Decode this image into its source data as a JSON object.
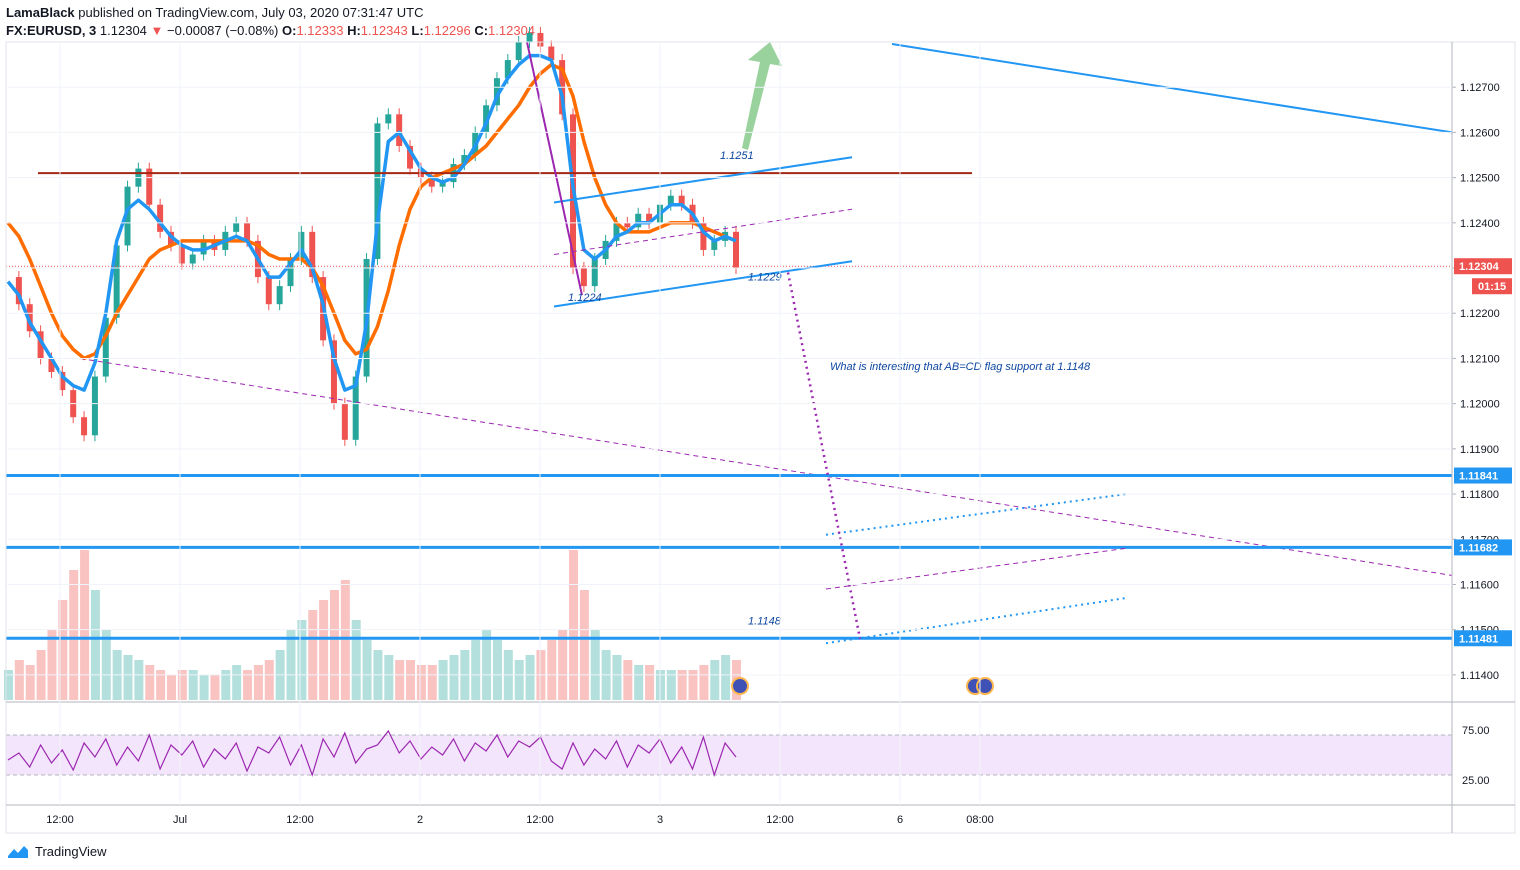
{
  "header": {
    "author": "LamaBlack",
    "published": "published on TradingView.com, July 03, 2020 07:31:47 UTC",
    "symbol": "FX:EURUSD, 3",
    "last": "1.12304",
    "arrow": "▼",
    "change": "−0.00087 (−0.08%)",
    "o_label": "O:",
    "o_value": "1.12333",
    "h_label": "H:",
    "h_value": "1.12343",
    "l_label": "L:",
    "l_value": "1.12296",
    "c_label": "C:",
    "c_value": "1.12304"
  },
  "footer": {
    "brand": "TradingView"
  },
  "colors": {
    "up": "#26a69a",
    "down": "#ef5350",
    "ema_fast": "#2196f3",
    "ema_slow": "#ff6d00",
    "level": "#2196f3",
    "resistance": "#a52714",
    "rsi": "#9c27b0",
    "rsi_band": "#f3e5fc"
  },
  "chart_data": {
    "type": "line",
    "symbol": "EURUSD",
    "timeframe": "3",
    "x_ticks": [
      "12:00",
      "Jul",
      "12:00",
      "2",
      "12:00",
      "3",
      "12:00",
      "6",
      "08:00"
    ],
    "y_ticks": [
      "1.12700",
      "1.12600",
      "1.12500",
      "1.12400",
      "1.12300",
      "1.12200",
      "1.12100",
      "1.12000",
      "1.11900",
      "1.11800",
      "1.11700",
      "1.11600",
      "1.11500",
      "1.11400"
    ],
    "ylim": [
      1.1134,
      1.128
    ],
    "price_series": [
      1.1228,
      1.1222,
      1.1216,
      1.121,
      1.1207,
      1.1203,
      1.1197,
      1.1193,
      1.1206,
      1.1219,
      1.1235,
      1.1248,
      1.1252,
      1.1244,
      1.1238,
      1.1235,
      1.1231,
      1.1233,
      1.1236,
      1.1234,
      1.1238,
      1.124,
      1.1236,
      1.1228,
      1.1222,
      1.1226,
      1.1232,
      1.1238,
      1.1228,
      1.1214,
      1.12,
      1.1192,
      1.1206,
      1.1232,
      1.1262,
      1.1264,
      1.1257,
      1.1252,
      1.125,
      1.1248,
      1.1249,
      1.1253,
      1.1255,
      1.126,
      1.1266,
      1.1272,
      1.1276,
      1.128,
      1.1282,
      1.1279,
      1.1276,
      1.1264,
      1.123,
      1.1226,
      1.1232,
      1.1236,
      1.124,
      1.1239,
      1.1242,
      1.124,
      1.1244,
      1.1246,
      1.1244,
      1.124,
      1.1234,
      1.1236,
      1.1238,
      1.123
    ],
    "ema_fast_series": [
      1.1227,
      1.1224,
      1.1218,
      1.1214,
      1.121,
      1.1206,
      1.1204,
      1.1203,
      1.1209,
      1.122,
      1.1236,
      1.1243,
      1.1245,
      1.1243,
      1.124,
      1.1237,
      1.1235,
      1.1234,
      1.1234,
      1.1235,
      1.1236,
      1.1237,
      1.1236,
      1.1232,
      1.1228,
      1.1228,
      1.1231,
      1.1234,
      1.123,
      1.1222,
      1.121,
      1.1203,
      1.1204,
      1.1218,
      1.124,
      1.1258,
      1.126,
      1.1256,
      1.1252,
      1.125,
      1.1249,
      1.125,
      1.1253,
      1.1257,
      1.1262,
      1.1268,
      1.1272,
      1.1275,
      1.1277,
      1.1277,
      1.1276,
      1.1268,
      1.1248,
      1.1234,
      1.1232,
      1.1234,
      1.1237,
      1.1238,
      1.124,
      1.124,
      1.1242,
      1.1244,
      1.1244,
      1.1242,
      1.1238,
      1.1236,
      1.1237,
      1.1236
    ],
    "ema_slow_series": [
      1.124,
      1.1237,
      1.1232,
      1.1226,
      1.122,
      1.1215,
      1.1212,
      1.121,
      1.1211,
      1.1215,
      1.122,
      1.1224,
      1.1228,
      1.1232,
      1.1234,
      1.1235,
      1.1236,
      1.1236,
      1.1236,
      1.1236,
      1.1236,
      1.1236,
      1.1236,
      1.1235,
      1.1233,
      1.1232,
      1.1232,
      1.1232,
      1.123,
      1.1226,
      1.122,
      1.1214,
      1.1211,
      1.1212,
      1.1217,
      1.1225,
      1.1235,
      1.1243,
      1.1248,
      1.125,
      1.1251,
      1.1252,
      1.1253,
      1.1255,
      1.1257,
      1.126,
      1.1263,
      1.1266,
      1.127,
      1.1273,
      1.1275,
      1.1274,
      1.1268,
      1.1258,
      1.125,
      1.1244,
      1.124,
      1.1238,
      1.1238,
      1.1238,
      1.1239,
      1.124,
      1.124,
      1.124,
      1.1239,
      1.1238,
      1.1237,
      1.1236
    ],
    "horizontal_levels": [
      {
        "price": 1.11841,
        "label": "1.11841"
      },
      {
        "price": 1.11682,
        "label": "1.11682"
      },
      {
        "price": 1.11481,
        "label": "1.11481"
      }
    ],
    "resistance_level": 1.1251,
    "current_price": {
      "label": "1.12304",
      "countdown": "01:15"
    },
    "annotations": [
      {
        "text": "1.1251"
      },
      {
        "text": "1.1224"
      },
      {
        "text": "1.1229"
      },
      {
        "text": "1.1148"
      },
      {
        "text": "What is interesting that AB=CD flag support at 1.1148"
      }
    ],
    "volume_series": [
      6,
      8,
      7,
      10,
      14,
      20,
      26,
      30,
      22,
      14,
      10,
      9,
      8,
      7,
      6,
      5,
      6,
      6,
      5,
      5,
      6,
      7,
      6,
      7,
      8,
      10,
      14,
      16,
      18,
      20,
      22,
      24,
      16,
      12,
      10,
      9,
      8,
      8,
      7,
      7,
      8,
      9,
      10,
      12,
      14,
      12,
      10,
      8,
      9,
      10,
      12,
      14,
      30,
      22,
      14,
      10,
      9,
      8,
      7,
      7,
      6,
      6,
      6,
      6,
      7,
      8,
      9,
      8
    ],
    "rsi": {
      "ticks": [
        "75.00",
        "25.00"
      ],
      "ylim": [
        0,
        100
      ],
      "band": [
        30,
        70
      ],
      "series": [
        45,
        52,
        38,
        60,
        42,
        55,
        35,
        62,
        48,
        66,
        40,
        58,
        44,
        70,
        36,
        60,
        50,
        64,
        38,
        56,
        46,
        62,
        34,
        58,
        52,
        68,
        40,
        60,
        30,
        66,
        48,
        72,
        42,
        56,
        60,
        74,
        52,
        64,
        46,
        58,
        50,
        66,
        44,
        62,
        54,
        70,
        48,
        64,
        58,
        68,
        44,
        36,
        62,
        40,
        56,
        46,
        64,
        38,
        60,
        52,
        66,
        42,
        58,
        36,
        68,
        30,
        62,
        48
      ]
    }
  }
}
